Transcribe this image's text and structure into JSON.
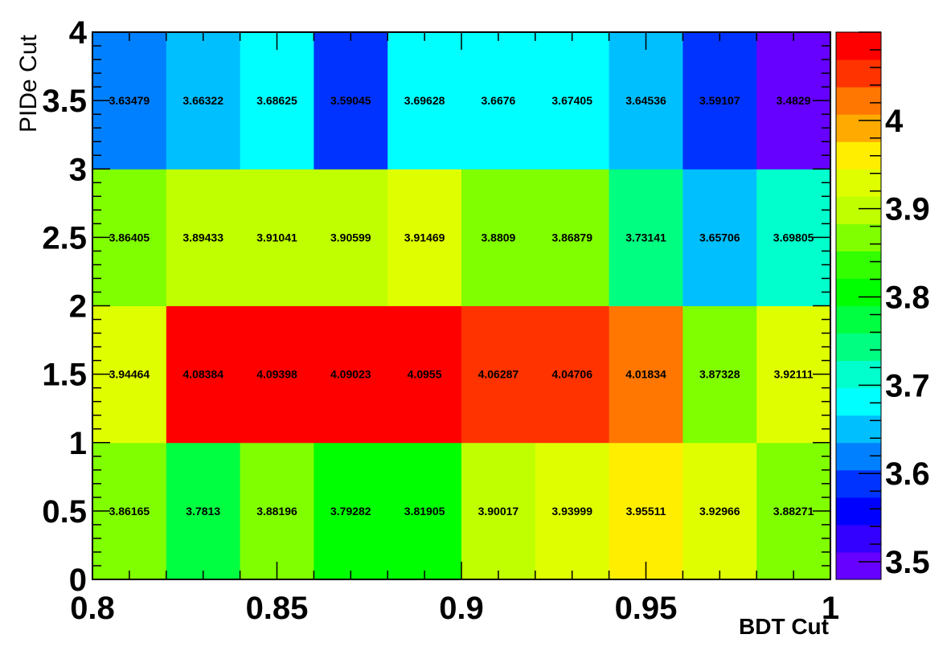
{
  "chart_data": {
    "type": "heatmap",
    "title": "",
    "xlabel": "BDT Cut",
    "ylabel": "PIDe Cut",
    "x_edges": [
      0.8,
      0.82,
      0.84,
      0.86,
      0.88,
      0.9,
      0.92,
      0.94,
      0.96,
      0.98,
      1.0
    ],
    "y_edges": [
      0,
      1,
      2,
      3,
      4
    ],
    "xlim": [
      0.8,
      1.0
    ],
    "ylim": [
      0,
      4
    ],
    "x_ticks": [
      "0.8",
      "0.85",
      "0.9",
      "0.95",
      "1"
    ],
    "y_ticks": [
      "0",
      "0.5",
      "1",
      "1.5",
      "2",
      "2.5",
      "3",
      "3.5",
      "4"
    ],
    "z_range": [
      3.48,
      4.1
    ],
    "palette_ticks": [
      "3.5",
      "3.6",
      "3.7",
      "3.8",
      "3.9",
      "4"
    ],
    "palette_colors": [
      "#6600ff",
      "#3300ff",
      "#0000ff",
      "#0033ff",
      "#0080ff",
      "#00bfff",
      "#00ffff",
      "#00ffcc",
      "#00ff80",
      "#00ff40",
      "#00ff00",
      "#33ff00",
      "#80ff00",
      "#bfff00",
      "#dfff00",
      "#ffee00",
      "#ffaa00",
      "#ff7700",
      "#ff3300",
      "#ff0000"
    ],
    "rows": [
      {
        "y": 0.5,
        "values": [
          3.86165,
          3.7813,
          3.88196,
          3.79282,
          3.81905,
          3.90017,
          3.93999,
          3.95511,
          3.92966,
          3.88271
        ],
        "labels": [
          "3.86165",
          "3.7813",
          "3.88196",
          "3.79282",
          "3.81905",
          "3.90017",
          "3.93999",
          "3.95511",
          "3.92966",
          "3.88271"
        ]
      },
      {
        "y": 1.5,
        "values": [
          3.94464,
          4.08384,
          4.09398,
          4.09023,
          4.0955,
          4.06287,
          4.04706,
          4.01834,
          3.87328,
          3.92111
        ],
        "labels": [
          "3.94464",
          "4.08384",
          "4.09398",
          "4.09023",
          "4.0955",
          "4.06287",
          "4.04706",
          "4.01834",
          "3.87328",
          "3.92111"
        ]
      },
      {
        "y": 2.5,
        "values": [
          3.86405,
          3.89433,
          3.91041,
          3.90599,
          3.91469,
          3.8809,
          3.86879,
          3.73141,
          3.65706,
          3.69805
        ],
        "labels": [
          "3.86405",
          "3.89433",
          "3.91041",
          "3.90599",
          "3.91469",
          "3.8809",
          "3.86879",
          "3.73141",
          "3.65706",
          "3.69805"
        ]
      },
      {
        "y": 3.5,
        "values": [
          3.63479,
          3.66322,
          3.68625,
          3.59045,
          3.69628,
          3.6676,
          3.67405,
          3.64536,
          3.59107,
          3.4829
        ],
        "labels": [
          "3.63479",
          "3.66322",
          "3.68625",
          "3.59045",
          "3.69628",
          "3.6676",
          "3.67405",
          "3.64536",
          "3.59107",
          "3.4829"
        ]
      }
    ]
  }
}
